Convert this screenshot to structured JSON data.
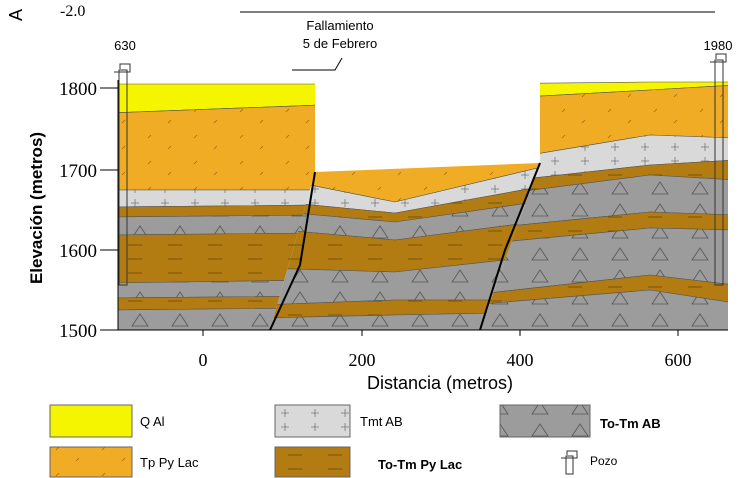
{
  "header": {
    "corner_letter": "A",
    "scale_fragment": "-2.0"
  },
  "annotation": {
    "lines": [
      "Fallamiento",
      "5 de Febrero"
    ]
  },
  "wells": [
    {
      "label": "630"
    },
    {
      "label": "1980"
    }
  ],
  "axes": {
    "y": {
      "label": "Elevación (metros)",
      "ticks": [
        "1800",
        "1700",
        "1600",
        "1500"
      ]
    },
    "x": {
      "label": "Distancia (metros)",
      "ticks": [
        "0",
        "200",
        "400",
        "600"
      ]
    }
  },
  "legend": [
    {
      "label": "Q Al"
    },
    {
      "label": "Tp Py Lac"
    },
    {
      "label": "Tmt AB"
    },
    {
      "label": "To-Tm Py Lac"
    },
    {
      "label": "To-Tm AB"
    },
    {
      "label": "Pozo"
    }
  ]
}
